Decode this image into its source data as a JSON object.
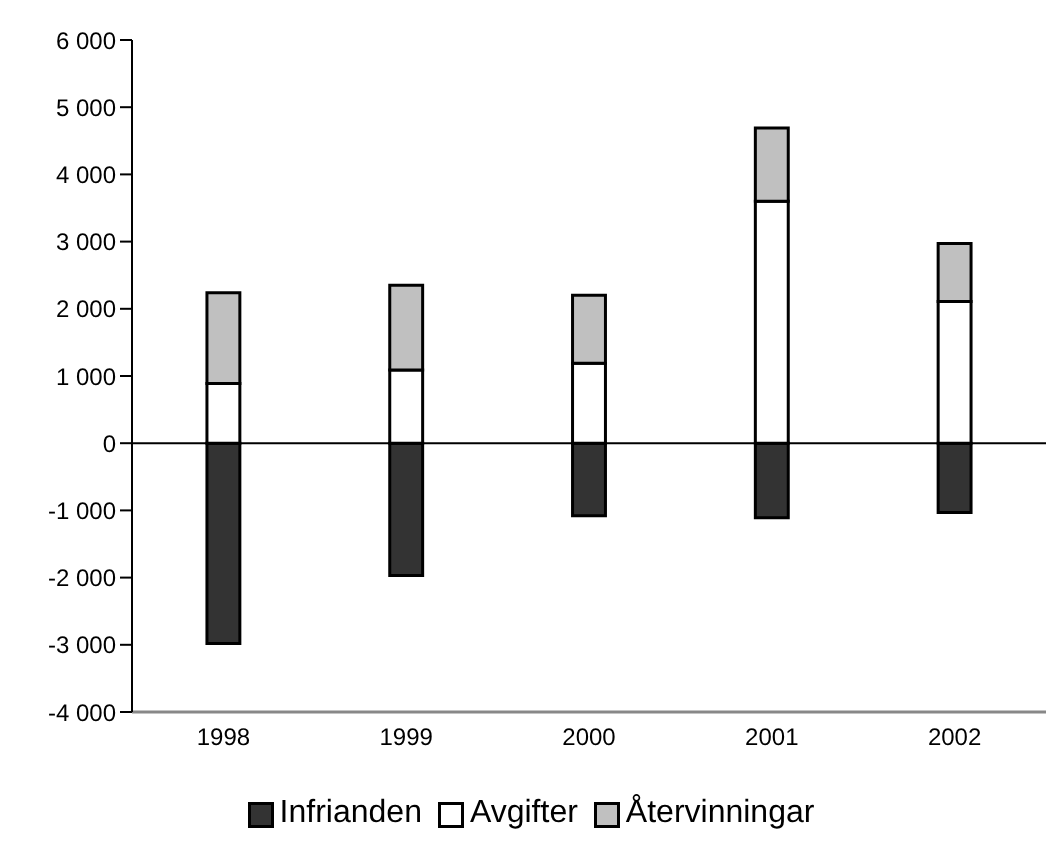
{
  "chart_data": {
    "type": "bar",
    "stacked": true,
    "categories": [
      "1998",
      "1999",
      "2000",
      "2001",
      "2002"
    ],
    "series": [
      {
        "name": "Infrianden",
        "color": "#333333",
        "values": [
          -2980,
          -1970,
          -1080,
          -1110,
          -1030
        ]
      },
      {
        "name": "Avgifter",
        "color": "#ffffff",
        "values": [
          890,
          1090,
          1190,
          3600,
          2110
        ]
      },
      {
        "name": "Återvinningar",
        "color": "#c0c0c0",
        "values": [
          1350,
          1260,
          1010,
          1090,
          860
        ]
      }
    ],
    "ylim": [
      -4000,
      6000
    ],
    "yticks": [
      {
        "value": -4000,
        "label": "-4 000"
      },
      {
        "value": -3000,
        "label": "-3 000"
      },
      {
        "value": -2000,
        "label": "-2 000"
      },
      {
        "value": -1000,
        "label": "-1 000"
      },
      0,
      {
        "value": 1000,
        "label": "1 000"
      },
      {
        "value": 2000,
        "label": "2 000"
      },
      {
        "value": 3000,
        "label": "3 000"
      },
      {
        "value": 4000,
        "label": "4 000"
      },
      {
        "value": 5000,
        "label": "5 000"
      },
      {
        "value": 6000,
        "label": "6 000"
      }
    ],
    "legend": "bottom"
  }
}
